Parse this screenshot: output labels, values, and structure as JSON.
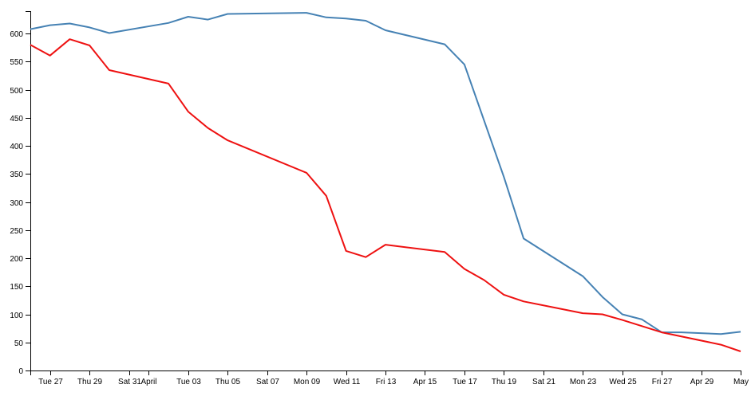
{
  "chart_data": {
    "type": "line",
    "title": "",
    "xlabel": "",
    "ylabel": "",
    "ylim": [
      0,
      640
    ],
    "grid": false,
    "legend": "none",
    "y_ticks": [
      0,
      50,
      100,
      150,
      200,
      250,
      300,
      350,
      400,
      450,
      500,
      550,
      600
    ],
    "x_range": [
      "2018-03-26",
      "2018-05-01"
    ],
    "x_ticks": [
      {
        "date": "2018-03-27",
        "label": "Tue 27"
      },
      {
        "date": "2018-03-29",
        "label": "Thu 29"
      },
      {
        "date": "2018-03-31",
        "label": "Sat 31"
      },
      {
        "date": "2018-04-01",
        "label": "April"
      },
      {
        "date": "2018-04-03",
        "label": "Tue 03"
      },
      {
        "date": "2018-04-05",
        "label": "Thu 05"
      },
      {
        "date": "2018-04-07",
        "label": "Sat 07"
      },
      {
        "date": "2018-04-09",
        "label": "Mon 09"
      },
      {
        "date": "2018-04-11",
        "label": "Wed 11"
      },
      {
        "date": "2018-04-13",
        "label": "Fri 13"
      },
      {
        "date": "2018-04-15",
        "label": "Apr 15"
      },
      {
        "date": "2018-04-17",
        "label": "Tue 17"
      },
      {
        "date": "2018-04-19",
        "label": "Thu 19"
      },
      {
        "date": "2018-04-21",
        "label": "Sat 21"
      },
      {
        "date": "2018-04-23",
        "label": "Mon 23"
      },
      {
        "date": "2018-04-25",
        "label": "Wed 25"
      },
      {
        "date": "2018-04-27",
        "label": "Fri 27"
      },
      {
        "date": "2018-04-29",
        "label": "Apr 29"
      },
      {
        "date": "2018-05-01",
        "label": "May"
      }
    ],
    "series": [
      {
        "color": "#4682b4",
        "x": [
          "2018-03-26",
          "2018-03-27",
          "2018-03-28",
          "2018-03-29",
          "2018-03-30",
          "2018-04-02",
          "2018-04-03",
          "2018-04-04",
          "2018-04-05",
          "2018-04-09",
          "2018-04-10",
          "2018-04-11",
          "2018-04-12",
          "2018-04-13",
          "2018-04-16",
          "2018-04-17",
          "2018-04-19",
          "2018-04-20",
          "2018-04-23",
          "2018-04-24",
          "2018-04-25",
          "2018-04-26",
          "2018-04-27",
          "2018-04-28",
          "2018-04-30",
          "2018-05-01"
        ],
        "values": [
          608,
          615,
          618,
          611,
          601,
          619,
          630,
          625,
          635,
          637,
          629,
          627,
          623,
          606,
          581,
          545,
          345,
          235,
          168,
          131,
          100,
          91,
          68,
          68,
          65,
          69
        ]
      },
      {
        "color": "#ee1111",
        "x": [
          "2018-03-26",
          "2018-03-27",
          "2018-03-28",
          "2018-03-29",
          "2018-03-30",
          "2018-04-02",
          "2018-04-03",
          "2018-04-04",
          "2018-04-05",
          "2018-04-09",
          "2018-04-10",
          "2018-04-11",
          "2018-04-12",
          "2018-04-13",
          "2018-04-16",
          "2018-04-17",
          "2018-04-18",
          "2018-04-19",
          "2018-04-20",
          "2018-04-23",
          "2018-04-24",
          "2018-04-25",
          "2018-04-27",
          "2018-04-30",
          "2018-05-01"
        ],
        "values": [
          580,
          561,
          590,
          579,
          535,
          511,
          461,
          432,
          410,
          352,
          311,
          213,
          202,
          224,
          211,
          181,
          161,
          135,
          123,
          102,
          100,
          90,
          68,
          46,
          34
        ]
      }
    ]
  }
}
